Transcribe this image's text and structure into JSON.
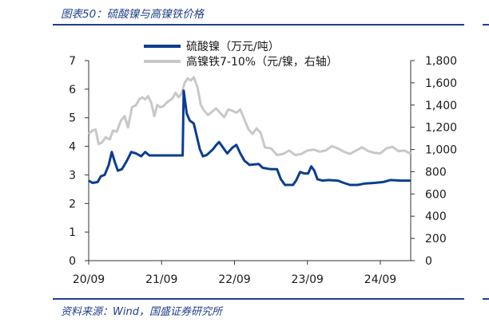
{
  "figure": {
    "title": "图表50：硫酸镍与高镍铁价格",
    "source": "资料来源：Wind，国盛证券研究所"
  },
  "colors": {
    "series_primary": "#0b3d91",
    "series_secondary": "#c8c8c8",
    "accent": "#1f3f8a"
  },
  "chart_data": {
    "type": "line",
    "title": "",
    "xlabel": "",
    "ylabel": "",
    "x_ticks": [
      "20/09",
      "21/09",
      "22/09",
      "23/09",
      "24/09"
    ],
    "x_range": [
      "2020-09",
      "2025-02"
    ],
    "y_left_range": [
      0,
      7
    ],
    "y_left_ticks": [
      "0",
      "1",
      "2",
      "3",
      "4",
      "5",
      "6",
      "7"
    ],
    "y_right_range": [
      0,
      1800
    ],
    "y_right_ticks": [
      "0",
      "200",
      "400",
      "600",
      "800",
      "1,000",
      "1,200",
      "1,400",
      "1,600",
      "1,800"
    ],
    "grid": false,
    "legend_position": "top-center",
    "series": [
      {
        "name": "硫酸镍（万元/吨）",
        "axis": "left",
        "color": "#0b3d91",
        "points": [
          [
            "2020-09-01",
            2.8
          ],
          [
            "2020-09-20",
            2.72
          ],
          [
            "2020-10-15",
            2.75
          ],
          [
            "2020-11-01",
            2.95
          ],
          [
            "2020-11-20",
            3.0
          ],
          [
            "2020-12-10",
            3.35
          ],
          [
            "2020-12-25",
            3.8
          ],
          [
            "2021-01-10",
            3.45
          ],
          [
            "2021-01-25",
            3.15
          ],
          [
            "2021-02-15",
            3.2
          ],
          [
            "2021-03-10",
            3.5
          ],
          [
            "2021-04-01",
            3.8
          ],
          [
            "2021-04-25",
            3.75
          ],
          [
            "2021-05-20",
            3.65
          ],
          [
            "2021-06-10",
            3.8
          ],
          [
            "2021-07-01",
            3.68
          ],
          [
            "2021-08-15",
            3.68
          ],
          [
            "2021-10-01",
            3.68
          ],
          [
            "2021-12-15",
            3.68
          ],
          [
            "2021-12-20",
            5.95
          ],
          [
            "2022-01-05",
            5.15
          ],
          [
            "2022-01-20",
            4.9
          ],
          [
            "2022-02-10",
            4.8
          ],
          [
            "2022-02-25",
            4.35
          ],
          [
            "2022-03-10",
            3.9
          ],
          [
            "2022-03-25",
            3.65
          ],
          [
            "2022-04-15",
            3.7
          ],
          [
            "2022-05-15",
            3.9
          ],
          [
            "2022-06-01",
            4.05
          ],
          [
            "2022-06-15",
            4.15
          ],
          [
            "2022-07-05",
            3.95
          ],
          [
            "2022-07-25",
            3.75
          ],
          [
            "2022-08-20",
            3.95
          ],
          [
            "2022-09-10",
            4.05
          ],
          [
            "2022-09-30",
            3.75
          ],
          [
            "2022-10-20",
            3.5
          ],
          [
            "2022-11-15",
            3.35
          ],
          [
            "2023-01-01",
            3.38
          ],
          [
            "2023-01-20",
            3.25
          ],
          [
            "2023-03-01",
            3.2
          ],
          [
            "2023-04-01",
            3.2
          ],
          [
            "2023-04-20",
            2.85
          ],
          [
            "2023-05-10",
            2.65
          ],
          [
            "2023-06-20",
            2.65
          ],
          [
            "2023-07-05",
            2.8
          ],
          [
            "2023-07-25",
            3.1
          ],
          [
            "2023-08-15",
            3.05
          ],
          [
            "2023-09-05",
            3.05
          ],
          [
            "2023-09-20",
            3.3
          ],
          [
            "2023-10-05",
            3.15
          ],
          [
            "2023-10-20",
            2.85
          ],
          [
            "2023-11-15",
            2.8
          ],
          [
            "2023-12-15",
            2.82
          ],
          [
            "2024-02-01",
            2.8
          ],
          [
            "2024-03-01",
            2.72
          ],
          [
            "2024-04-01",
            2.65
          ],
          [
            "2024-05-10",
            2.65
          ],
          [
            "2024-06-15",
            2.7
          ],
          [
            "2024-08-01",
            2.72
          ],
          [
            "2024-09-15",
            2.75
          ],
          [
            "2024-10-20",
            2.82
          ],
          [
            "2024-12-15",
            2.8
          ],
          [
            "2025-02-01",
            2.8
          ]
        ]
      },
      {
        "name": "高镍铁7-10%（元/镍，右轴）",
        "axis": "right",
        "color": "#c8c8c8",
        "points": [
          [
            "2020-09-01",
            1140
          ],
          [
            "2020-09-20",
            1170
          ],
          [
            "2020-10-05",
            1180
          ],
          [
            "2020-10-20",
            1050
          ],
          [
            "2020-11-05",
            1060
          ],
          [
            "2020-11-25",
            1110
          ],
          [
            "2020-12-15",
            1090
          ],
          [
            "2021-01-01",
            1170
          ],
          [
            "2021-01-20",
            1160
          ],
          [
            "2021-02-10",
            1260
          ],
          [
            "2021-02-28",
            1300
          ],
          [
            "2021-03-15",
            1200
          ],
          [
            "2021-04-05",
            1380
          ],
          [
            "2021-04-25",
            1400
          ],
          [
            "2021-05-10",
            1450
          ],
          [
            "2021-05-25",
            1470
          ],
          [
            "2021-06-10",
            1450
          ],
          [
            "2021-06-25",
            1480
          ],
          [
            "2021-07-10",
            1420
          ],
          [
            "2021-07-25",
            1300
          ],
          [
            "2021-08-10",
            1400
          ],
          [
            "2021-08-25",
            1380
          ],
          [
            "2021-09-10",
            1390
          ],
          [
            "2021-09-25",
            1420
          ],
          [
            "2021-10-10",
            1440
          ],
          [
            "2021-10-25",
            1460
          ],
          [
            "2021-11-10",
            1510
          ],
          [
            "2021-11-25",
            1470
          ],
          [
            "2021-12-10",
            1500
          ],
          [
            "2021-12-25",
            1600
          ],
          [
            "2022-01-10",
            1640
          ],
          [
            "2022-01-25",
            1620
          ],
          [
            "2022-02-10",
            1650
          ],
          [
            "2022-02-28",
            1560
          ],
          [
            "2022-03-15",
            1400
          ],
          [
            "2022-04-01",
            1350
          ],
          [
            "2022-04-20",
            1310
          ],
          [
            "2022-05-10",
            1340
          ],
          [
            "2022-05-30",
            1370
          ],
          [
            "2022-06-20",
            1330
          ],
          [
            "2022-07-10",
            1290
          ],
          [
            "2022-07-30",
            1360
          ],
          [
            "2022-08-20",
            1350
          ],
          [
            "2022-09-10",
            1330
          ],
          [
            "2022-09-30",
            1360
          ],
          [
            "2022-10-20",
            1270
          ],
          [
            "2022-11-10",
            1180
          ],
          [
            "2022-11-30",
            1140
          ],
          [
            "2022-12-20",
            1190
          ],
          [
            "2023-01-10",
            1150
          ],
          [
            "2023-02-01",
            1020
          ],
          [
            "2023-03-01",
            1010
          ],
          [
            "2023-04-01",
            950
          ],
          [
            "2023-05-01",
            960
          ],
          [
            "2023-06-01",
            990
          ],
          [
            "2023-07-01",
            950
          ],
          [
            "2023-08-01",
            960
          ],
          [
            "2023-09-01",
            990
          ],
          [
            "2023-10-01",
            1000
          ],
          [
            "2023-11-01",
            980
          ],
          [
            "2023-12-01",
            990
          ],
          [
            "2024-01-01",
            1030
          ],
          [
            "2024-02-01",
            1010
          ],
          [
            "2024-03-01",
            980
          ],
          [
            "2024-04-01",
            960
          ],
          [
            "2024-05-01",
            990
          ],
          [
            "2024-06-01",
            1020
          ],
          [
            "2024-07-01",
            985
          ],
          [
            "2024-08-01",
            970
          ],
          [
            "2024-09-01",
            965
          ],
          [
            "2024-10-01",
            1010
          ],
          [
            "2024-11-01",
            1025
          ],
          [
            "2024-12-01",
            985
          ],
          [
            "2025-01-01",
            990
          ],
          [
            "2025-02-01",
            960
          ]
        ]
      }
    ]
  }
}
